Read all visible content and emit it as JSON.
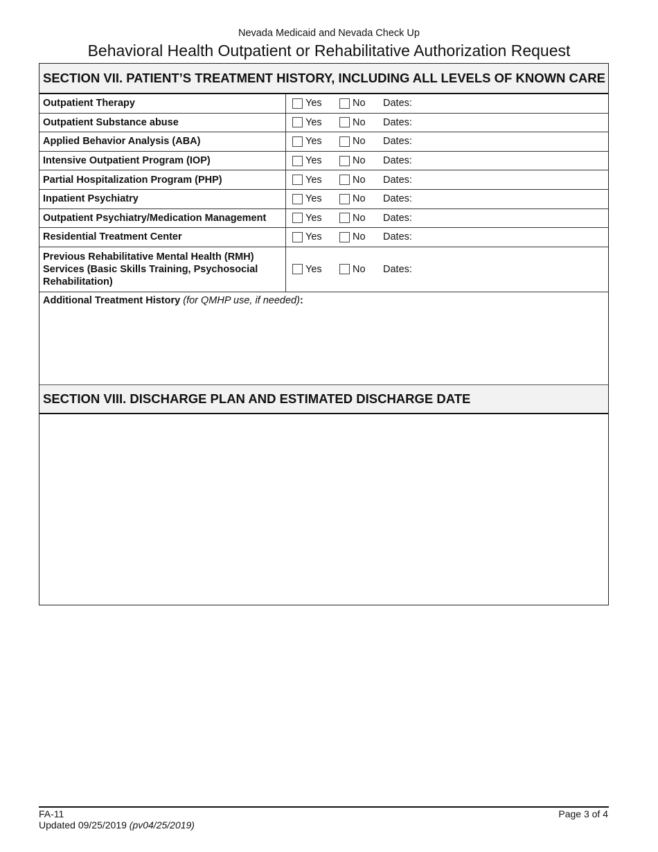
{
  "header": {
    "subtitle": "Nevada Medicaid and Nevada Check Up",
    "title": "Behavioral Health Outpatient or Rehabilitative Authorization Request"
  },
  "section7": {
    "title": "SECTION VII. PATIENT’S TREATMENT HISTORY, INCLUDING ALL LEVELS OF KNOWN CARE",
    "yes_label": "Yes",
    "no_label": "No",
    "dates_label": "Dates:",
    "rows": [
      {
        "label": "Outpatient Therapy",
        "yes": false,
        "no": false
      },
      {
        "label": "Outpatient Substance abuse",
        "yes": false,
        "no": false
      },
      {
        "label": "Applied Behavior Analysis (ABA)",
        "yes": false,
        "no": false
      },
      {
        "label": "Intensive Outpatient Program (IOP)",
        "yes": false,
        "no": false
      },
      {
        "label": "Partial Hospitalization Program (PHP)",
        "yes": false,
        "no": false
      },
      {
        "label": "Inpatient Psychiatry",
        "yes": false,
        "no": false
      },
      {
        "label": "Outpatient Psychiatry/Medication Management",
        "yes": false,
        "no": false
      },
      {
        "label": "Residential Treatment Center",
        "yes": false,
        "no": false
      },
      {
        "label": "Previous Rehabilitative Mental Health (RMH) Services (Basic Skills Training, Psychosocial Rehabilitation)",
        "yes": false,
        "no": false
      }
    ],
    "additional_label": "Additional Treatment History",
    "additional_note": "(for QMHP use, if needed)",
    "additional_colon": ":",
    "additional_value": ""
  },
  "section8": {
    "title": "SECTION VIII. DISCHARGE PLAN AND ESTIMATED DISCHARGE DATE",
    "value": ""
  },
  "footer": {
    "form_id": "FA-11",
    "updated": "Updated 09/25/2019",
    "pv": "(pv04/25/2019)",
    "page": "Page 3 of 4"
  }
}
